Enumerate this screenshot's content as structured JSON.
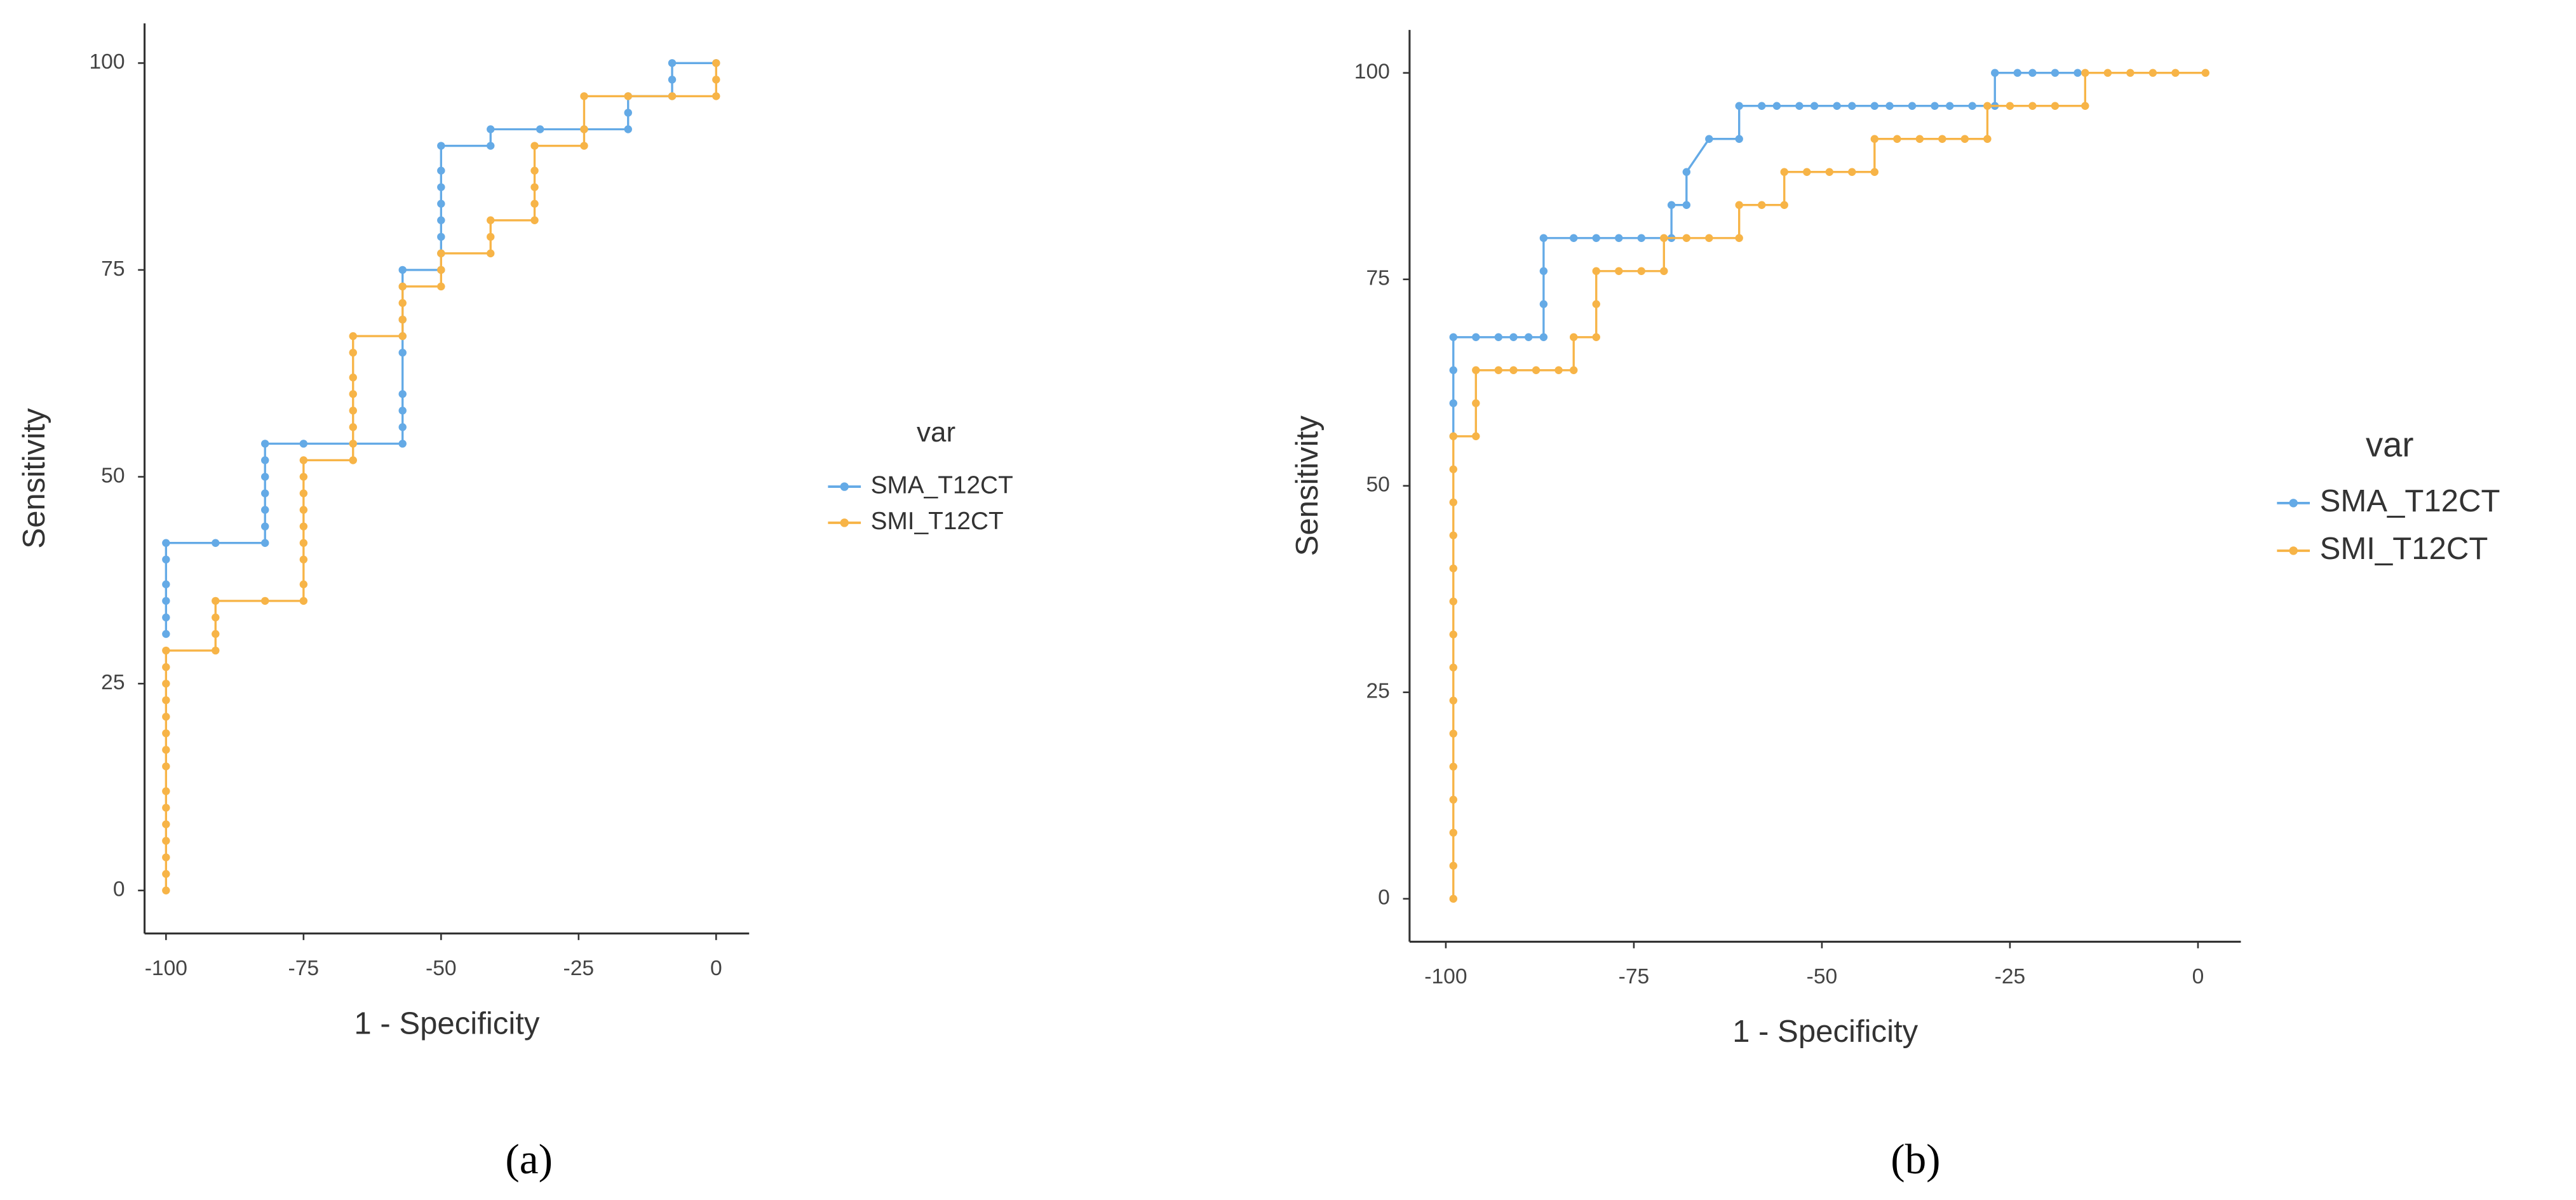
{
  "chart_data": [
    {
      "type": "line",
      "xlabel": "1 - Specificity",
      "ylabel": "Sensitivity",
      "legend_title": "var",
      "caption": "(a)",
      "xlim": [
        -103.6,
        6
      ],
      "ylim": [
        -5,
        104.8
      ],
      "xticks": [
        -100,
        -75,
        -50,
        -25,
        0
      ],
      "yticks": [
        0,
        25,
        50,
        75,
        100
      ],
      "series": [
        {
          "name": "SMA_T12CT",
          "color": "#64aae6",
          "x": [
            -100,
            -100,
            -100,
            -100,
            -100,
            -100,
            -91,
            -82,
            -82,
            -82,
            -82,
            -82,
            -82,
            -82,
            -75,
            -57,
            -57,
            -57,
            -57,
            -57,
            -57,
            -57,
            -57,
            -57,
            -50,
            -50,
            -50,
            -50,
            -50,
            -50,
            -50,
            -50,
            -41,
            -41,
            -32,
            -24,
            -16,
            -16,
            -16,
            -8,
            -8,
            -8,
            0
          ],
          "values": [
            31,
            33,
            35,
            37,
            40,
            42,
            42,
            42,
            44,
            46,
            48,
            50,
            52,
            54,
            54,
            54,
            56,
            58,
            60,
            65,
            67,
            69,
            73,
            75,
            75,
            77,
            79,
            81,
            83,
            85,
            87,
            90,
            90,
            92,
            92,
            92,
            92,
            94,
            96,
            96,
            98,
            100,
            100
          ]
        },
        {
          "name": "SMI_T12CT",
          "color": "#f7b447",
          "x": [
            -100,
            -100,
            -100,
            -100,
            -100,
            -100,
            -100,
            -100,
            -100,
            -100,
            -100,
            -100,
            -100,
            -100,
            -100,
            -91,
            -91,
            -91,
            -91,
            -82,
            -75,
            -75,
            -75,
            -75,
            -75,
            -75,
            -75,
            -75,
            -75,
            -66,
            -66,
            -66,
            -66,
            -66,
            -66,
            -66,
            -66,
            -57,
            -57,
            -57,
            -57,
            -50,
            -50,
            -50,
            -41,
            -41,
            -41,
            -33,
            -33,
            -33,
            -33,
            -33,
            -24,
            -24,
            -24,
            -16,
            -8,
            0,
            0,
            0
          ],
          "values": [
            0,
            2,
            4,
            6,
            8,
            10,
            12,
            15,
            17,
            19,
            21,
            23,
            25,
            27,
            29,
            29,
            31,
            33,
            35,
            35,
            35,
            37,
            40,
            42,
            44,
            46,
            48,
            50,
            52,
            52,
            54,
            56,
            58,
            60,
            62,
            65,
            67,
            67,
            69,
            71,
            73,
            73,
            75,
            77,
            77,
            79,
            81,
            81,
            83,
            85,
            87,
            90,
            90,
            92,
            96,
            96,
            96,
            96,
            98,
            100
          ]
        }
      ]
    },
    {
      "type": "line",
      "xlabel": "1 - Specificity",
      "ylabel": "Sensitivity",
      "legend_title": "var",
      "caption": "(b)",
      "xlim": [
        -104.6,
        5.7
      ],
      "ylim": [
        -5,
        105.2
      ],
      "xticks": [
        -100,
        -75,
        -50,
        -25,
        0
      ],
      "yticks": [
        0,
        25,
        50,
        75,
        100
      ],
      "series": [
        {
          "name": "SMA_T12CT",
          "color": "#64aae6",
          "x": [
            -99,
            -99,
            -99,
            -99,
            -96,
            -93,
            -91,
            -89,
            -87,
            -87,
            -87,
            -87,
            -83,
            -80,
            -77,
            -74,
            -70,
            -70,
            -68,
            -68,
            -65,
            -61,
            -61,
            -58,
            -56,
            -53,
            -51,
            -48,
            -46,
            -43,
            -41,
            -38,
            -35,
            -33,
            -30,
            -27,
            -27,
            -24,
            -22,
            -19,
            -16
          ],
          "values": [
            56,
            60,
            64,
            68,
            68,
            68,
            68,
            68,
            68,
            72,
            76,
            80,
            80,
            80,
            80,
            80,
            80,
            84,
            84,
            88,
            92,
            92,
            96,
            96,
            96,
            96,
            96,
            96,
            96,
            96,
            96,
            96,
            96,
            96,
            96,
            96,
            100,
            100,
            100,
            100,
            100
          ]
        },
        {
          "name": "SMI_T12CT",
          "color": "#f7b447",
          "x": [
            -99,
            -99,
            -99,
            -99,
            -99,
            -99,
            -99,
            -99,
            -99,
            -99,
            -99,
            -99,
            -99,
            -99,
            -99,
            -96,
            -96,
            -96,
            -93,
            -91,
            -88,
            -85,
            -83,
            -83,
            -80,
            -80,
            -80,
            -77,
            -74,
            -71,
            -71,
            -68,
            -65,
            -61,
            -61,
            -58,
            -55,
            -55,
            -52,
            -49,
            -46,
            -43,
            -43,
            -40,
            -37,
            -34,
            -31,
            -28,
            -28,
            -25,
            -22,
            -19,
            -15,
            -15,
            -12,
            -9,
            -6,
            -3,
            1
          ],
          "values": [
            0,
            4,
            8,
            12,
            16,
            20,
            24,
            28,
            32,
            36,
            40,
            44,
            48,
            52,
            56,
            56,
            60,
            64,
            64,
            64,
            64,
            64,
            64,
            68,
            68,
            72,
            76,
            76,
            76,
            76,
            80,
            80,
            80,
            80,
            84,
            84,
            84,
            88,
            88,
            88,
            88,
            88,
            92,
            92,
            92,
            92,
            92,
            92,
            96,
            96,
            96,
            96,
            96,
            100,
            100,
            100,
            100,
            100,
            100
          ]
        }
      ]
    }
  ]
}
